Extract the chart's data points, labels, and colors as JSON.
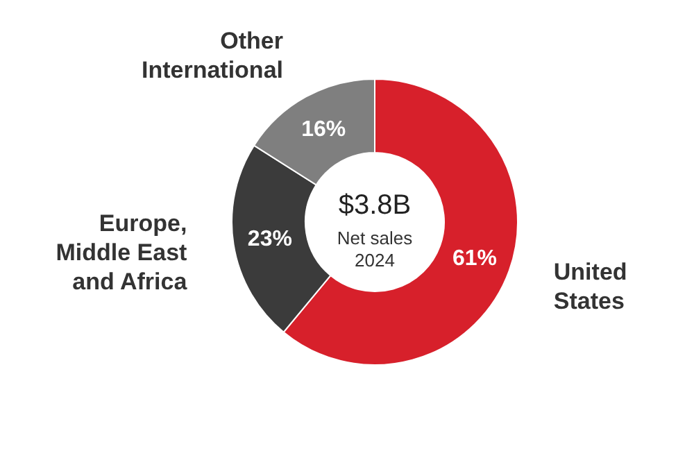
{
  "chart_data": {
    "type": "donut",
    "categories": [
      "United States",
      "Europe, Middle East and Africa",
      "Other International"
    ],
    "values": [
      61,
      23,
      16
    ],
    "colors": [
      "#d7202b",
      "#3b3b3b",
      "#7f7f7f"
    ],
    "value_labels": [
      "61%",
      "23%",
      "16%"
    ],
    "annotations": [
      "$3.8B",
      "Net sales",
      "2024"
    ]
  }
}
